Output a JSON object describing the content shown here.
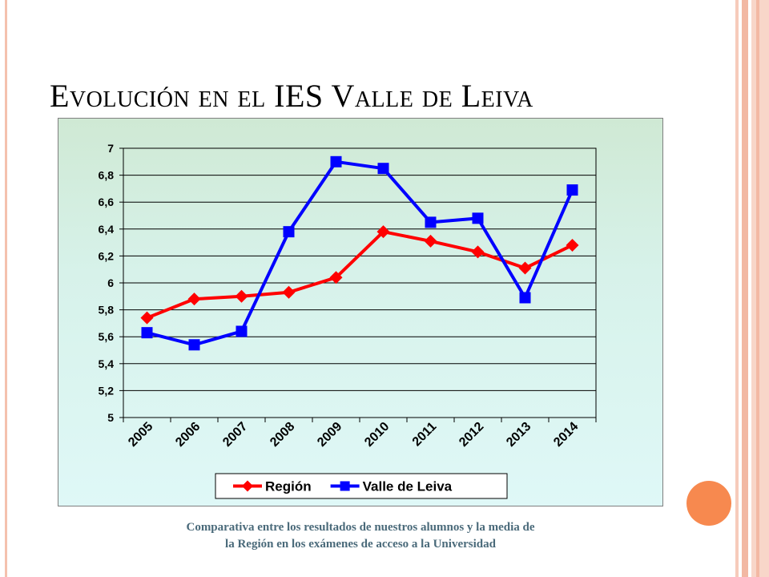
{
  "title": "Evolución en el IES Valle de Leiva",
  "caption_line1": "Comparativa entre los resultados de nuestros alumnos y la media de",
  "caption_line2": "la Región en los exámenes de acceso a la Universidad",
  "colors": {
    "region": "#ff0000",
    "valle": "#0000ff",
    "accent": "#f7894f",
    "frame": "#f4c1ae"
  },
  "chart_data": {
    "type": "line",
    "title": "",
    "xlabel": "",
    "ylabel": "",
    "categories": [
      "2005",
      "2006",
      "2007",
      "2008",
      "2009",
      "2010",
      "2011",
      "2012",
      "2013",
      "2014"
    ],
    "series": [
      {
        "name": "Región",
        "color": "#ff0000",
        "marker": "diamond",
        "values": [
          5.74,
          5.88,
          5.9,
          5.93,
          6.04,
          6.38,
          6.31,
          6.23,
          6.11,
          6.28
        ]
      },
      {
        "name": "Valle de Leiva",
        "color": "#0000ff",
        "marker": "square",
        "values": [
          5.63,
          5.54,
          5.64,
          6.38,
          6.9,
          6.85,
          6.45,
          6.48,
          5.89,
          6.69
        ]
      }
    ],
    "ylim": [
      5,
      7
    ],
    "yticks": [
      "5",
      "5,2",
      "5,4",
      "5,6",
      "5,8",
      "6",
      "6,2",
      "6,4",
      "6,6",
      "6,8",
      "7"
    ],
    "grid": "horizontal",
    "legend": "bottom"
  }
}
